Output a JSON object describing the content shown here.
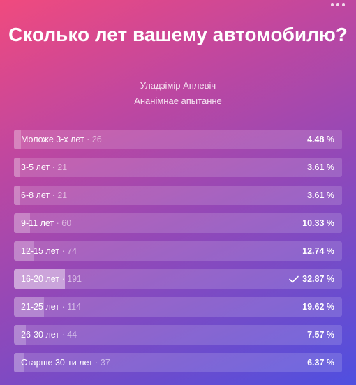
{
  "poll": {
    "title": "Сколько лет вашему автомобилю?",
    "author": "Уладзімір Аплевіч",
    "type": "Ананімнае апытанне",
    "options": [
      {
        "label": "Моложе 3-х лет",
        "count": "· 26",
        "percent": "4.48 %",
        "fraction": 0.0448,
        "chosen": false
      },
      {
        "label": "3-5 лет",
        "count": "· 21",
        "percent": "3.61 %",
        "fraction": 0.0361,
        "chosen": false
      },
      {
        "label": "6-8 лет",
        "count": "· 21",
        "percent": "3.61 %",
        "fraction": 0.0361,
        "chosen": false
      },
      {
        "label": "9-11 лет",
        "count": "· 60",
        "percent": "10.33 %",
        "fraction": 0.1033,
        "chosen": false
      },
      {
        "label": "12-15 лет",
        "count": "· 74",
        "percent": "12.74 %",
        "fraction": 0.1274,
        "chosen": false
      },
      {
        "label": "16-20 лет",
        "count": "· 191",
        "percent": "32.87 %",
        "fraction": 0.3287,
        "chosen": true
      },
      {
        "label": "21-25 лет",
        "count": "· 114",
        "percent": "19.62 %",
        "fraction": 0.1962,
        "chosen": false
      },
      {
        "label": "26-30 лет",
        "count": "· 44",
        "percent": "7.57 %",
        "fraction": 0.0757,
        "chosen": false
      },
      {
        "label": "Старше 30-ти лет",
        "count": "· 37",
        "percent": "6.37 %",
        "fraction": 0.0637,
        "chosen": false
      }
    ]
  },
  "icons": {
    "menu": "more-horizontal-icon",
    "check": "checkmark-icon"
  }
}
